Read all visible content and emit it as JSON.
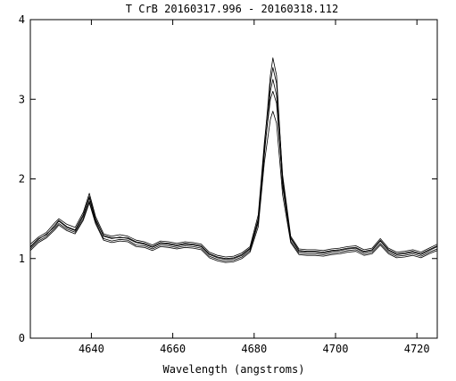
{
  "chart_data": {
    "type": "line",
    "title": "T CrB 20160317.996 - 20160318.112",
    "xlabel": "Wavelength (angstroms)",
    "ylabel": "",
    "xlim": [
      4625,
      4725
    ],
    "ylim": [
      0,
      4
    ],
    "x_ticks": [
      4640,
      4660,
      4680,
      4700,
      4720
    ],
    "x_tick_labels": [
      "4640",
      "4660",
      "4680",
      "4700",
      "4720"
    ],
    "y_ticks": [
      0,
      1,
      2,
      3,
      4
    ],
    "y_tick_labels": [
      "0",
      "1",
      "2",
      "3",
      "4"
    ],
    "grid": false,
    "legend": "none",
    "line_color": "#000000",
    "series": [
      {
        "x": [
          4625,
          4627,
          4629,
          4631,
          4632,
          4634,
          4636,
          4638,
          4639.5,
          4641,
          4643,
          4645,
          4647,
          4649,
          4651,
          4653,
          4655,
          4657,
          4659,
          4661,
          4663,
          4665,
          4667,
          4669,
          4671,
          4673,
          4675,
          4677,
          4679,
          4681,
          4682.5,
          4684,
          4684.6,
          4685.5,
          4687,
          4689,
          4691,
          4693,
          4695,
          4697,
          4699,
          4701,
          4703,
          4705,
          4707,
          4709,
          4711,
          4713,
          4715,
          4717,
          4719,
          4721,
          4723,
          4725
        ],
        "values": [
          1.15,
          1.25,
          1.3,
          1.42,
          1.48,
          1.4,
          1.36,
          1.55,
          1.78,
          1.5,
          1.28,
          1.25,
          1.27,
          1.25,
          1.2,
          1.18,
          1.14,
          1.19,
          1.18,
          1.16,
          1.18,
          1.17,
          1.15,
          1.05,
          1.01,
          0.99,
          1.0,
          1.04,
          1.12,
          1.5,
          2.4,
          3.3,
          3.52,
          3.3,
          2.0,
          1.25,
          1.09,
          1.08,
          1.08,
          1.07,
          1.09,
          1.1,
          1.12,
          1.13,
          1.08,
          1.1,
          1.22,
          1.1,
          1.05,
          1.06,
          1.08,
          1.05,
          1.1,
          1.15
        ]
      },
      {
        "x": [
          4625,
          4627,
          4629,
          4631,
          4632,
          4634,
          4636,
          4638,
          4639.5,
          4641,
          4643,
          4645,
          4647,
          4649,
          4651,
          4653,
          4655,
          4657,
          4659,
          4661,
          4663,
          4665,
          4667,
          4669,
          4671,
          4673,
          4675,
          4677,
          4679,
          4681,
          4682.5,
          4684,
          4684.6,
          4685.5,
          4687,
          4689,
          4691,
          4693,
          4695,
          4697,
          4699,
          4701,
          4703,
          4705,
          4707,
          4709,
          4711,
          4713,
          4715,
          4717,
          4719,
          4721,
          4723,
          4725
        ],
        "values": [
          1.12,
          1.22,
          1.28,
          1.38,
          1.44,
          1.37,
          1.33,
          1.5,
          1.72,
          1.46,
          1.25,
          1.22,
          1.24,
          1.23,
          1.17,
          1.16,
          1.12,
          1.17,
          1.16,
          1.14,
          1.16,
          1.15,
          1.13,
          1.03,
          0.99,
          0.97,
          0.98,
          1.02,
          1.1,
          1.45,
          2.3,
          3.1,
          3.25,
          3.05,
          1.9,
          1.22,
          1.07,
          1.06,
          1.06,
          1.05,
          1.07,
          1.08,
          1.1,
          1.11,
          1.06,
          1.08,
          1.19,
          1.08,
          1.03,
          1.04,
          1.06,
          1.03,
          1.08,
          1.12
        ]
      },
      {
        "x": [
          4625,
          4627,
          4629,
          4631,
          4632,
          4634,
          4636,
          4638,
          4639.5,
          4641,
          4643,
          4645,
          4647,
          4649,
          4651,
          4653,
          4655,
          4657,
          4659,
          4661,
          4663,
          4665,
          4667,
          4669,
          4671,
          4673,
          4675,
          4677,
          4679,
          4681,
          4682.5,
          4684,
          4684.6,
          4685.5,
          4687,
          4689,
          4691,
          4693,
          4695,
          4697,
          4699,
          4701,
          4703,
          4705,
          4707,
          4709,
          4711,
          4713,
          4715,
          4717,
          4719,
          4721,
          4723,
          4725
        ],
        "values": [
          1.18,
          1.27,
          1.33,
          1.45,
          1.5,
          1.43,
          1.39,
          1.58,
          1.82,
          1.53,
          1.31,
          1.28,
          1.3,
          1.28,
          1.23,
          1.21,
          1.17,
          1.22,
          1.21,
          1.19,
          1.21,
          1.2,
          1.18,
          1.08,
          1.04,
          1.02,
          1.03,
          1.07,
          1.15,
          1.55,
          2.45,
          3.2,
          3.4,
          3.2,
          2.05,
          1.28,
          1.12,
          1.11,
          1.11,
          1.1,
          1.12,
          1.13,
          1.15,
          1.16,
          1.11,
          1.13,
          1.25,
          1.13,
          1.08,
          1.09,
          1.11,
          1.08,
          1.13,
          1.18
        ]
      },
      {
        "x": [
          4625,
          4627,
          4629,
          4631,
          4632,
          4634,
          4636,
          4638,
          4639.5,
          4641,
          4643,
          4645,
          4647,
          4649,
          4651,
          4653,
          4655,
          4657,
          4659,
          4661,
          4663,
          4665,
          4667,
          4669,
          4671,
          4673,
          4675,
          4677,
          4679,
          4681,
          4682.5,
          4684,
          4684.6,
          4685.5,
          4687,
          4689,
          4691,
          4693,
          4695,
          4697,
          4699,
          4701,
          4703,
          4705,
          4707,
          4709,
          4711,
          4713,
          4715,
          4717,
          4719,
          4721,
          4723,
          4725
        ],
        "values": [
          1.1,
          1.2,
          1.26,
          1.36,
          1.42,
          1.35,
          1.31,
          1.48,
          1.7,
          1.44,
          1.23,
          1.2,
          1.22,
          1.21,
          1.15,
          1.14,
          1.1,
          1.15,
          1.14,
          1.12,
          1.14,
          1.13,
          1.11,
          1.01,
          0.97,
          0.95,
          0.96,
          1.0,
          1.08,
          1.4,
          2.2,
          2.75,
          2.85,
          2.7,
          1.8,
          1.2,
          1.05,
          1.04,
          1.04,
          1.03,
          1.05,
          1.06,
          1.08,
          1.09,
          1.04,
          1.06,
          1.17,
          1.06,
          1.01,
          1.02,
          1.04,
          1.01,
          1.06,
          1.1
        ]
      },
      {
        "x": [
          4625,
          4627,
          4629,
          4631,
          4632,
          4634,
          4636,
          4638,
          4639.5,
          4641,
          4643,
          4645,
          4647,
          4649,
          4651,
          4653,
          4655,
          4657,
          4659,
          4661,
          4663,
          4665,
          4667,
          4669,
          4671,
          4673,
          4675,
          4677,
          4679,
          4681,
          4682.5,
          4684,
          4684.6,
          4685.5,
          4687,
          4689,
          4691,
          4693,
          4695,
          4697,
          4699,
          4701,
          4703,
          4705,
          4707,
          4709,
          4711,
          4713,
          4715,
          4717,
          4719,
          4721,
          4723,
          4725
        ],
        "values": [
          1.14,
          1.24,
          1.31,
          1.4,
          1.47,
          1.39,
          1.35,
          1.53,
          1.76,
          1.48,
          1.29,
          1.26,
          1.26,
          1.26,
          1.21,
          1.19,
          1.15,
          1.2,
          1.19,
          1.17,
          1.19,
          1.18,
          1.16,
          1.06,
          1.02,
          1.0,
          1.01,
          1.05,
          1.13,
          1.48,
          2.35,
          3.0,
          3.1,
          2.95,
          1.95,
          1.26,
          1.1,
          1.09,
          1.09,
          1.08,
          1.1,
          1.11,
          1.13,
          1.14,
          1.09,
          1.11,
          1.23,
          1.11,
          1.06,
          1.07,
          1.09,
          1.06,
          1.11,
          1.16
        ]
      }
    ]
  }
}
